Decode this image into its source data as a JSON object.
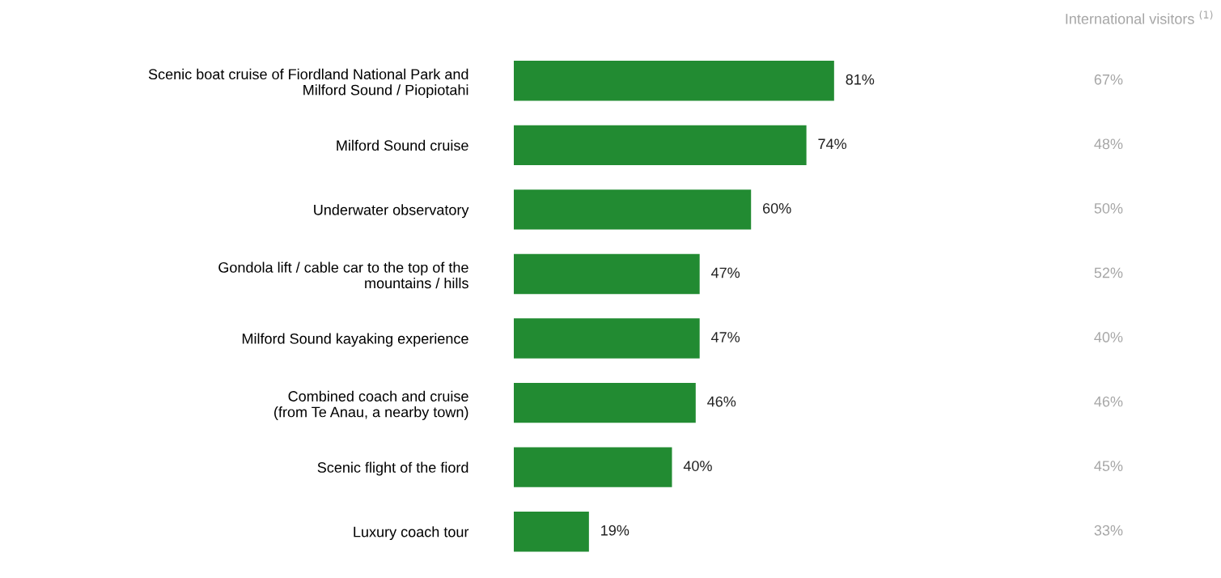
{
  "chart_data": [
    {
      "type": "bar",
      "orientation": "horizontal",
      "categories": [
        "Scenic boat cruise of Fiordland National Park and\nMilford Sound / Piopiotahi",
        "Milford Sound cruise",
        "Underwater observatory",
        "Gondola lift / cable car to the top of the\nmountains / hills",
        "Milford Sound kayaking experience",
        "Combined coach and cruise\n(from Te Anau, a nearby town)",
        "Scenic flight of the fiord",
        "Luxury coach tour"
      ],
      "series": [
        {
          "color": "#228b32",
          "values": [
            81,
            74,
            60,
            47,
            47,
            46,
            40,
            19
          ],
          "value_labels": [
            "81%",
            "74%",
            "60%",
            "47%",
            "47%",
            "46%",
            "40%",
            "19%"
          ]
        }
      ],
      "tick_labels": "y"
    },
    {
      "type": "other",
      "title": "International visitors $^{(1)}$",
      "annotations": [
        "67%",
        "48%",
        "50%",
        "52%",
        "40%",
        "46%",
        "45%",
        "33%"
      ]
    }
  ]
}
